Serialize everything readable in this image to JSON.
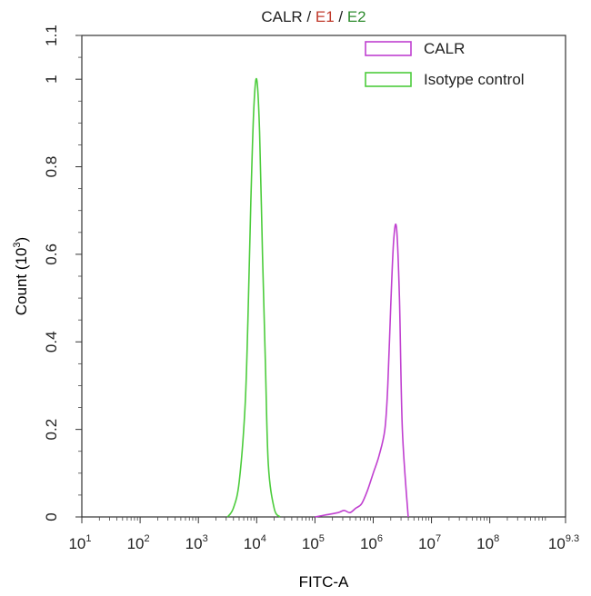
{
  "chart_data": {
    "type": "line",
    "title_parts": [
      {
        "text": "CALR",
        "color": "#222222"
      },
      {
        "text": " / ",
        "color": "#222222"
      },
      {
        "text": "E1",
        "color": "#c0392b"
      },
      {
        "text": " / ",
        "color": "#222222"
      },
      {
        "text": "E2",
        "color": "#2e8b2e"
      }
    ],
    "xlabel": "FITC-A",
    "ylabel": "Count (10",
    "ylabel_sup": "3",
    "ylabel_end": ")",
    "x_scale": "log",
    "xlim": [
      1,
      9.3
    ],
    "ylim": [
      0,
      1.1
    ],
    "x_ticks": [
      {
        "base": "10",
        "exp": "1"
      },
      {
        "base": "10",
        "exp": "2"
      },
      {
        "base": "10",
        "exp": "3"
      },
      {
        "base": "10",
        "exp": "4"
      },
      {
        "base": "10",
        "exp": "5"
      },
      {
        "base": "10",
        "exp": "6"
      },
      {
        "base": "10",
        "exp": "7"
      },
      {
        "base": "10",
        "exp": "8"
      },
      {
        "base": "10",
        "exp": "9.3"
      }
    ],
    "y_ticks": [
      "0",
      "0.2",
      "0.4",
      "0.6",
      "0.8",
      "1",
      "1.1"
    ],
    "legend_position": "top-right",
    "series": [
      {
        "name": "CALR",
        "color": "#c040d0",
        "x": [
          5.0,
          5.2,
          5.4,
          5.5,
          5.6,
          5.7,
          5.8,
          5.9,
          6.0,
          6.1,
          6.2,
          6.25,
          6.3,
          6.35,
          6.4,
          6.45,
          6.5,
          6.6
        ],
        "y": [
          0.0,
          0.005,
          0.01,
          0.015,
          0.01,
          0.02,
          0.03,
          0.06,
          0.1,
          0.14,
          0.2,
          0.3,
          0.48,
          0.63,
          0.66,
          0.5,
          0.2,
          0.0
        ]
      },
      {
        "name": "Isotype control",
        "color": "#4ccc3c",
        "x": [
          3.5,
          3.6,
          3.7,
          3.8,
          3.85,
          3.9,
          3.95,
          4.0,
          4.05,
          4.1,
          4.15,
          4.2,
          4.3,
          4.4
        ],
        "y": [
          0.0,
          0.02,
          0.08,
          0.25,
          0.45,
          0.72,
          0.93,
          1.0,
          0.88,
          0.6,
          0.35,
          0.12,
          0.02,
          0.0
        ]
      }
    ]
  }
}
